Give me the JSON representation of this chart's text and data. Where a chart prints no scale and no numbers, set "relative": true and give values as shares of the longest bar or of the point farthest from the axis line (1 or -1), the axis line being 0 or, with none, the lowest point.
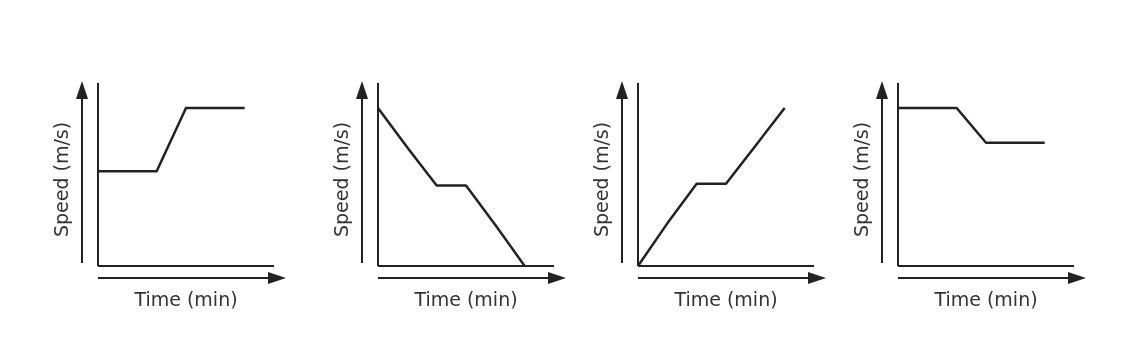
{
  "chart_data": [
    {
      "type": "line",
      "relative": true,
      "xlabel": "Time (min)",
      "ylabel": "Speed (m/s)",
      "categories": [
        null,
        null,
        null,
        null,
        null,
        null
      ],
      "series": [
        {
          "color": "#222222",
          "values": [
            0.6,
            0.6,
            0.6,
            1,
            1,
            1
          ]
        }
      ]
    },
    {
      "type": "line",
      "relative": true,
      "xlabel": "Time (min)",
      "ylabel": "Speed (m/s)",
      "categories": [
        null,
        null,
        null,
        null,
        null,
        null
      ],
      "series": [
        {
          "color": "#222222",
          "values": [
            1,
            0.75,
            0.51,
            0.51,
            0.26,
            0
          ]
        }
      ]
    },
    {
      "type": "line",
      "relative": true,
      "xlabel": "Time (min)",
      "ylabel": "Speed (m/s)",
      "categories": [
        null,
        null,
        null,
        null,
        null,
        null
      ],
      "series": [
        {
          "color": "#222222",
          "values": [
            0,
            0.27,
            0.52,
            0.52,
            0.76,
            1
          ]
        }
      ]
    },
    {
      "type": "line",
      "relative": true,
      "xlabel": "Time (min)",
      "ylabel": "Speed (m/s)",
      "categories": [
        null,
        null,
        null,
        null,
        null,
        null
      ],
      "series": [
        {
          "color": "#222222",
          "values": [
            1,
            1,
            1,
            0.78,
            0.78,
            0.78
          ]
        }
      ]
    }
  ]
}
